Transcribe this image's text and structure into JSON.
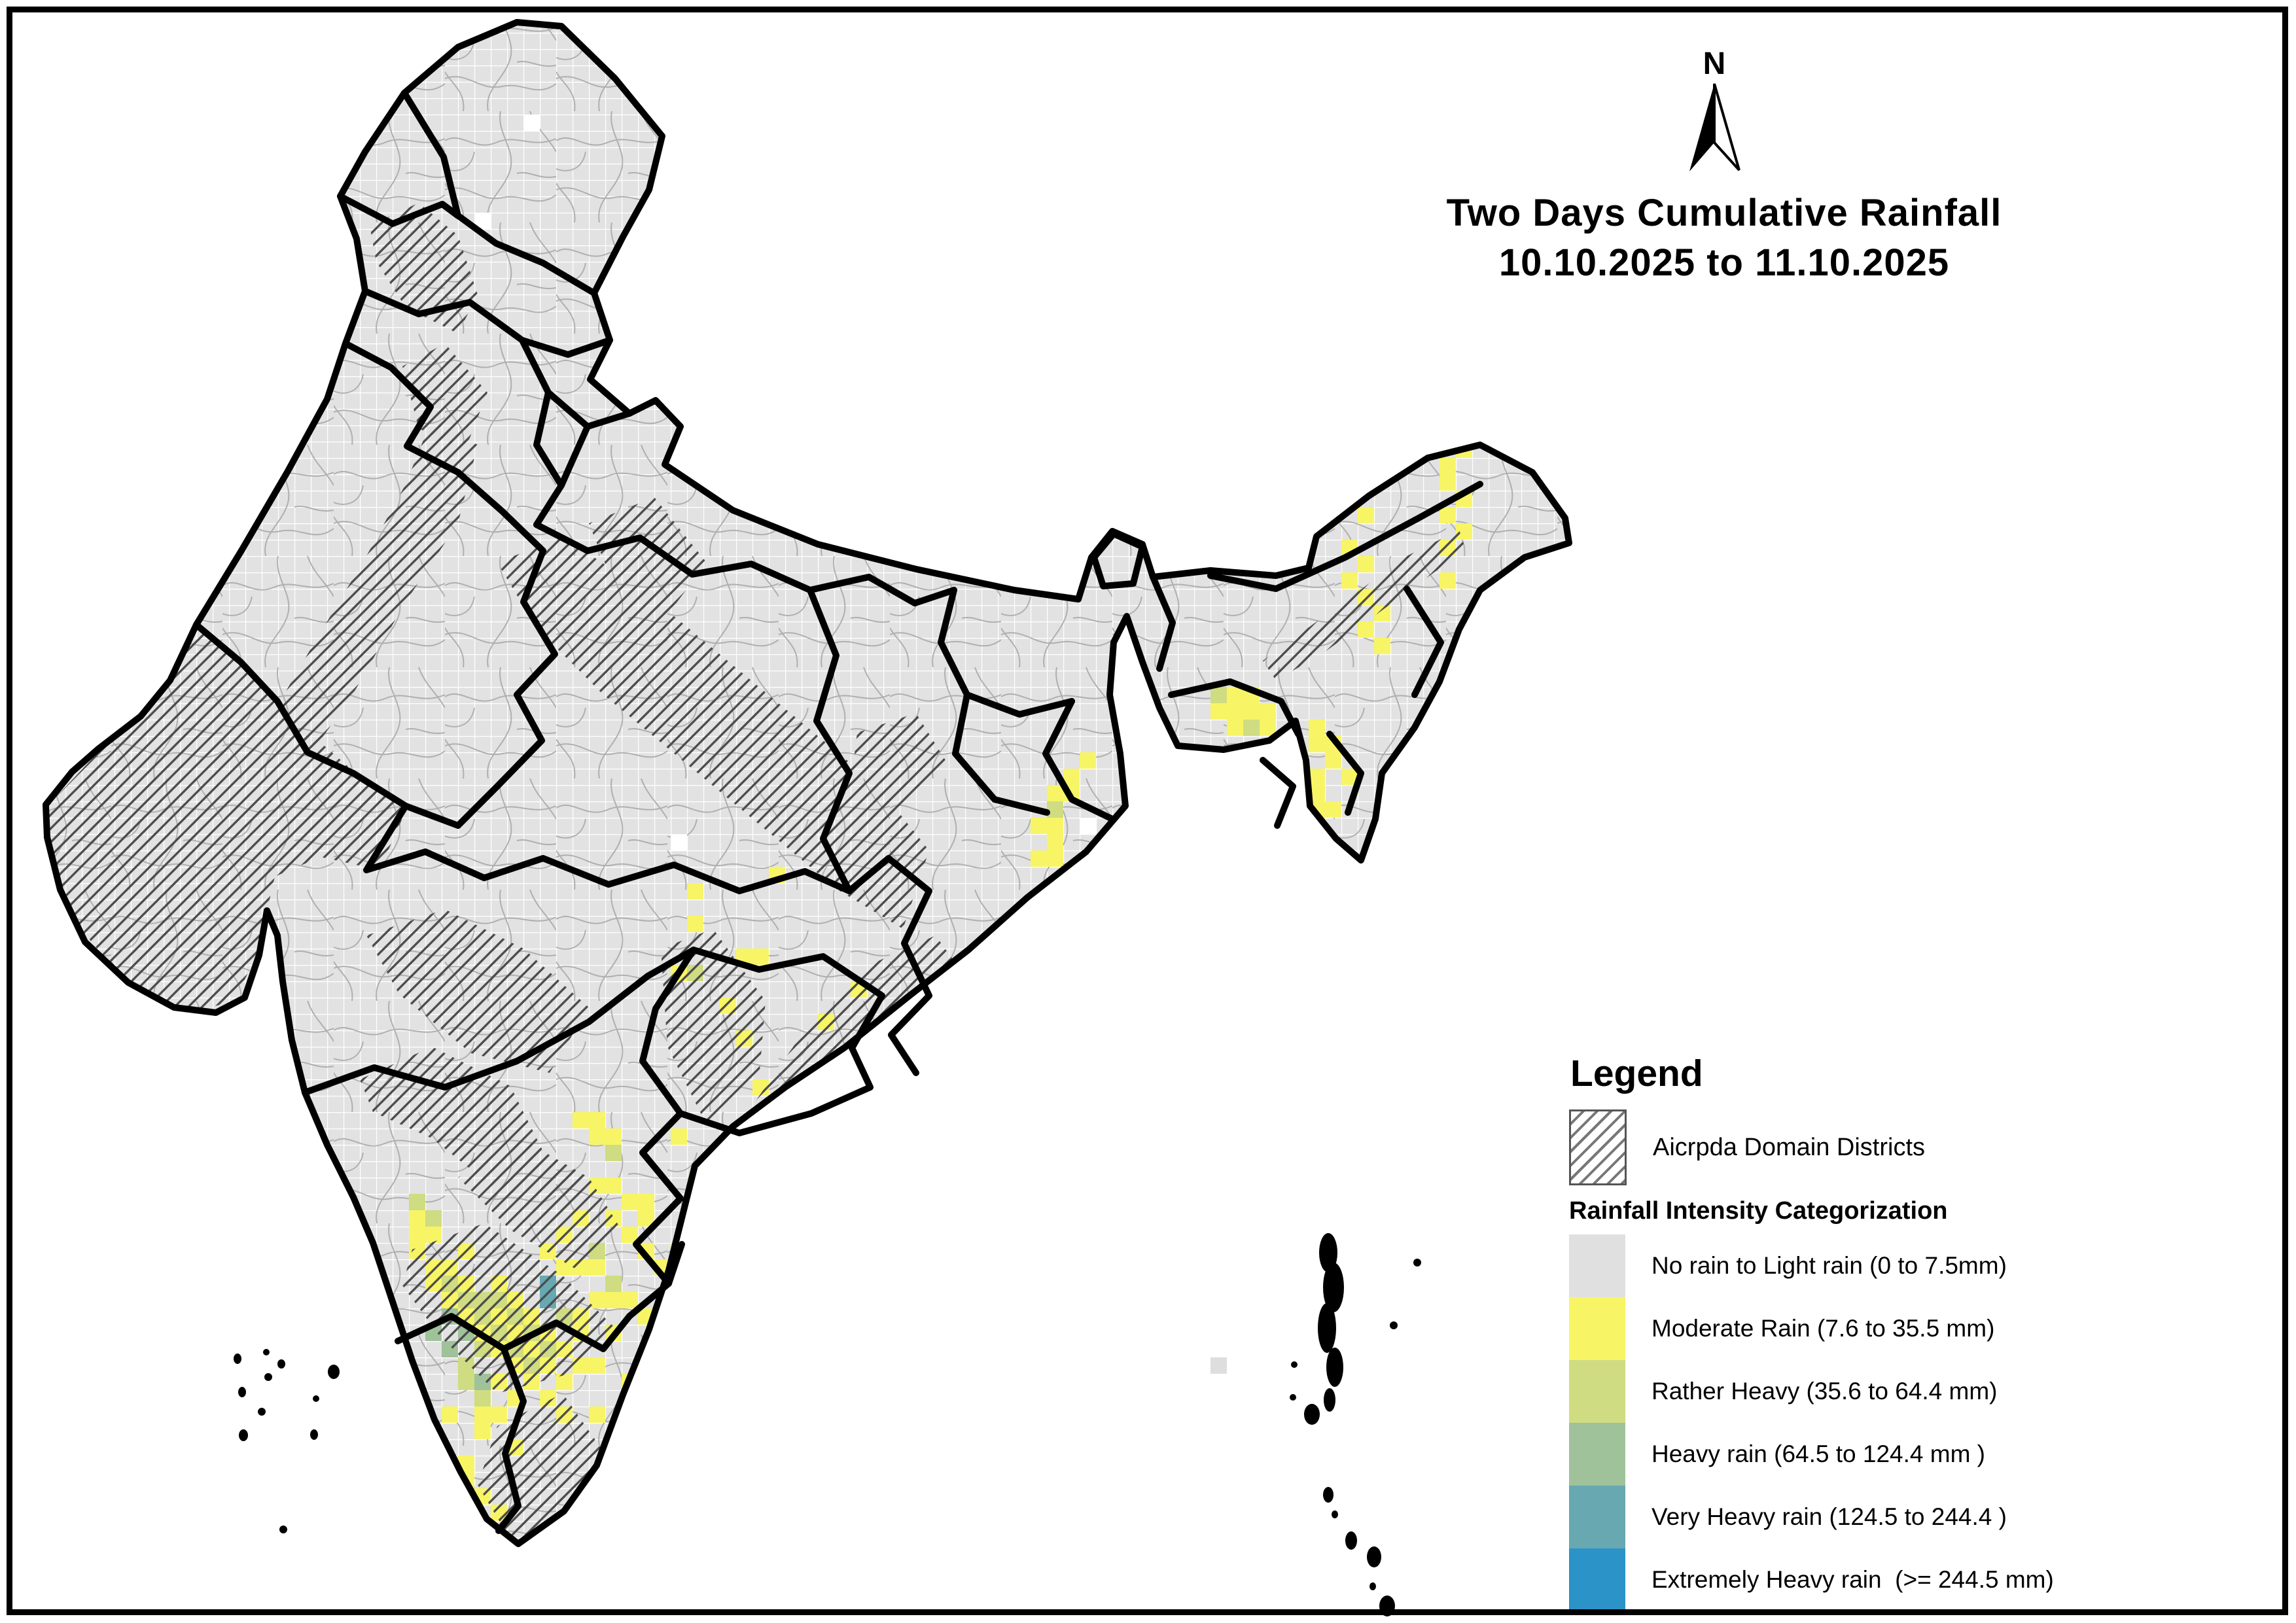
{
  "title": {
    "line1": "Two Days Cumulative Rainfall",
    "line2": "10.10.2025 to 11.10.2025"
  },
  "north_arrow": {
    "label": "N"
  },
  "legend": {
    "heading": "Legend",
    "domain_label": "Aicrpda Domain Districts",
    "subheading": "Rainfall Intensity Categorization",
    "classes": [
      {
        "id": "no_rain",
        "label": "No rain to Light rain (0 to 7.5mm)",
        "color": "#e0e0e0"
      },
      {
        "id": "moderate",
        "label": "Moderate Rain (7.6 to 35.5 mm)",
        "color": "#f7f566"
      },
      {
        "id": "rather_heavy",
        "label": "Rather Heavy (35.6 to 64.4 mm)",
        "color": "#cfdc82"
      },
      {
        "id": "heavy",
        "label": "Heavy rain (64.5 to 124.4 mm )",
        "color": "#9fc29b"
      },
      {
        "id": "very_heavy",
        "label": "Very Heavy rain (124.5 to 244.4 )",
        "color": "#68a8b1"
      },
      {
        "id": "extremely_heavy",
        "label": "Extremely Heavy rain  (>= 244.5 mm)",
        "color": "#2b93c7"
      }
    ]
  },
  "map": {
    "cell_size": 25,
    "base_color": "#e2e2e2",
    "rainfall_cells": {
      "moderate": [
        [
          25,
          74
        ],
        [
          25,
          75
        ],
        [
          26,
          75
        ],
        [
          25,
          76
        ],
        [
          28,
          76
        ],
        [
          26,
          77
        ],
        [
          27,
          77
        ],
        [
          26,
          78
        ],
        [
          28,
          78
        ],
        [
          30,
          78
        ],
        [
          27,
          79
        ],
        [
          31,
          79
        ],
        [
          28,
          80
        ],
        [
          30,
          80
        ],
        [
          32,
          80
        ],
        [
          29,
          81
        ],
        [
          31,
          81
        ],
        [
          33,
          81
        ],
        [
          30,
          82
        ],
        [
          32,
          82
        ],
        [
          34,
          82
        ],
        [
          31,
          83
        ],
        [
          33,
          83
        ],
        [
          35,
          83
        ],
        [
          30,
          84
        ],
        [
          32,
          84
        ],
        [
          34,
          84
        ],
        [
          31,
          85
        ],
        [
          33,
          85
        ],
        [
          30,
          86
        ],
        [
          34,
          86
        ],
        [
          27,
          86
        ],
        [
          29,
          86
        ],
        [
          29,
          87
        ],
        [
          31,
          88
        ],
        [
          28,
          89
        ],
        [
          28,
          90
        ],
        [
          29,
          91
        ],
        [
          27,
          92
        ],
        [
          30,
          92
        ],
        [
          29,
          93
        ],
        [
          30,
          94
        ],
        [
          33,
          76
        ],
        [
          34,
          75
        ],
        [
          35,
          74
        ],
        [
          34,
          77
        ],
        [
          35,
          81
        ],
        [
          36,
          83
        ],
        [
          36,
          86
        ],
        [
          37,
          88
        ],
        [
          35,
          68
        ],
        [
          36,
          68
        ],
        [
          36,
          69
        ],
        [
          37,
          69
        ],
        [
          36,
          72
        ],
        [
          37,
          72
        ],
        [
          38,
          73
        ],
        [
          37,
          74
        ],
        [
          39,
          74
        ],
        [
          38,
          75
        ],
        [
          39,
          76
        ],
        [
          40,
          77
        ],
        [
          41,
          76
        ],
        [
          35,
          77
        ],
        [
          36,
          77
        ],
        [
          36,
          79
        ],
        [
          37,
          79
        ],
        [
          38,
          79
        ],
        [
          35,
          80
        ],
        [
          39,
          80
        ],
        [
          37,
          81
        ],
        [
          40,
          81
        ],
        [
          38,
          84
        ],
        [
          39,
          73
        ],
        [
          42,
          54
        ],
        [
          42,
          56
        ],
        [
          41,
          59
        ],
        [
          45,
          58
        ],
        [
          46,
          58
        ],
        [
          44,
          61
        ],
        [
          45,
          63
        ],
        [
          41,
          69
        ],
        [
          48,
          67
        ],
        [
          49,
          67
        ],
        [
          58,
          59
        ],
        [
          52,
          60
        ],
        [
          50,
          62
        ],
        [
          46,
          66
        ],
        [
          44,
          70
        ],
        [
          42,
          72
        ],
        [
          47,
          53
        ],
        [
          64,
          48
        ],
        [
          65,
          48
        ],
        [
          63,
          50
        ],
        [
          64,
          50
        ],
        [
          64,
          51
        ],
        [
          63,
          52
        ],
        [
          64,
          52
        ],
        [
          66,
          46
        ],
        [
          65,
          47
        ],
        [
          82,
          27
        ],
        [
          82,
          28
        ],
        [
          83,
          29
        ],
        [
          82,
          30
        ],
        [
          83,
          31
        ],
        [
          82,
          33
        ],
        [
          83,
          34
        ],
        [
          82,
          35
        ],
        [
          83,
          36
        ],
        [
          84,
          37
        ],
        [
          83,
          38
        ],
        [
          84,
          39
        ],
        [
          88,
          28
        ],
        [
          88,
          29
        ],
        [
          89,
          30
        ],
        [
          88,
          31
        ],
        [
          89,
          32
        ],
        [
          88,
          33
        ],
        [
          89,
          27
        ],
        [
          88,
          35
        ],
        [
          84,
          26
        ],
        [
          85,
          27
        ],
        [
          75,
          42
        ],
        [
          76,
          42
        ],
        [
          74,
          43
        ],
        [
          75,
          43
        ],
        [
          76,
          43
        ],
        [
          77,
          43
        ],
        [
          75,
          44
        ],
        [
          77,
          44
        ],
        [
          78,
          45
        ],
        [
          80,
          44
        ],
        [
          81,
          45
        ],
        [
          80,
          45
        ],
        [
          81,
          46
        ],
        [
          82,
          47
        ],
        [
          77,
          47
        ],
        [
          78,
          48
        ],
        [
          79,
          47
        ],
        [
          80,
          47
        ],
        [
          79,
          48
        ],
        [
          80,
          48
        ],
        [
          79,
          49
        ],
        [
          80,
          49
        ],
        [
          79,
          50
        ],
        [
          80,
          50
        ],
        [
          80,
          51
        ],
        [
          81,
          49
        ],
        [
          80,
          52
        ]
      ],
      "rather_heavy": [
        [
          26,
          74
        ],
        [
          25,
          73
        ],
        [
          27,
          78
        ],
        [
          28,
          79
        ],
        [
          29,
          79
        ],
        [
          30,
          79
        ],
        [
          29,
          80
        ],
        [
          31,
          80
        ],
        [
          30,
          81
        ],
        [
          32,
          81
        ],
        [
          29,
          82
        ],
        [
          31,
          82
        ],
        [
          33,
          82
        ],
        [
          28,
          83
        ],
        [
          32,
          83
        ],
        [
          34,
          80
        ],
        [
          28,
          84
        ],
        [
          29,
          85
        ],
        [
          36,
          76
        ],
        [
          37,
          78
        ],
        [
          37,
          70
        ],
        [
          42,
          59
        ],
        [
          74,
          42
        ],
        [
          76,
          44
        ],
        [
          64,
          49
        ]
      ],
      "heavy": [
        [
          27,
          80
        ],
        [
          26,
          81
        ],
        [
          28,
          81
        ],
        [
          27,
          82
        ],
        [
          29,
          84
        ]
      ],
      "very_heavy": [
        [
          33,
          78
        ],
        [
          33,
          79
        ]
      ],
      "nodata_white": [
        [
          29,
          13
        ],
        [
          32,
          7
        ],
        [
          37,
          22
        ],
        [
          67,
          51
        ],
        [
          66,
          50
        ],
        [
          66,
          52
        ],
        [
          41,
          51
        ]
      ],
      "sea_gray": [
        [
          74,
          83
        ]
      ]
    }
  }
}
